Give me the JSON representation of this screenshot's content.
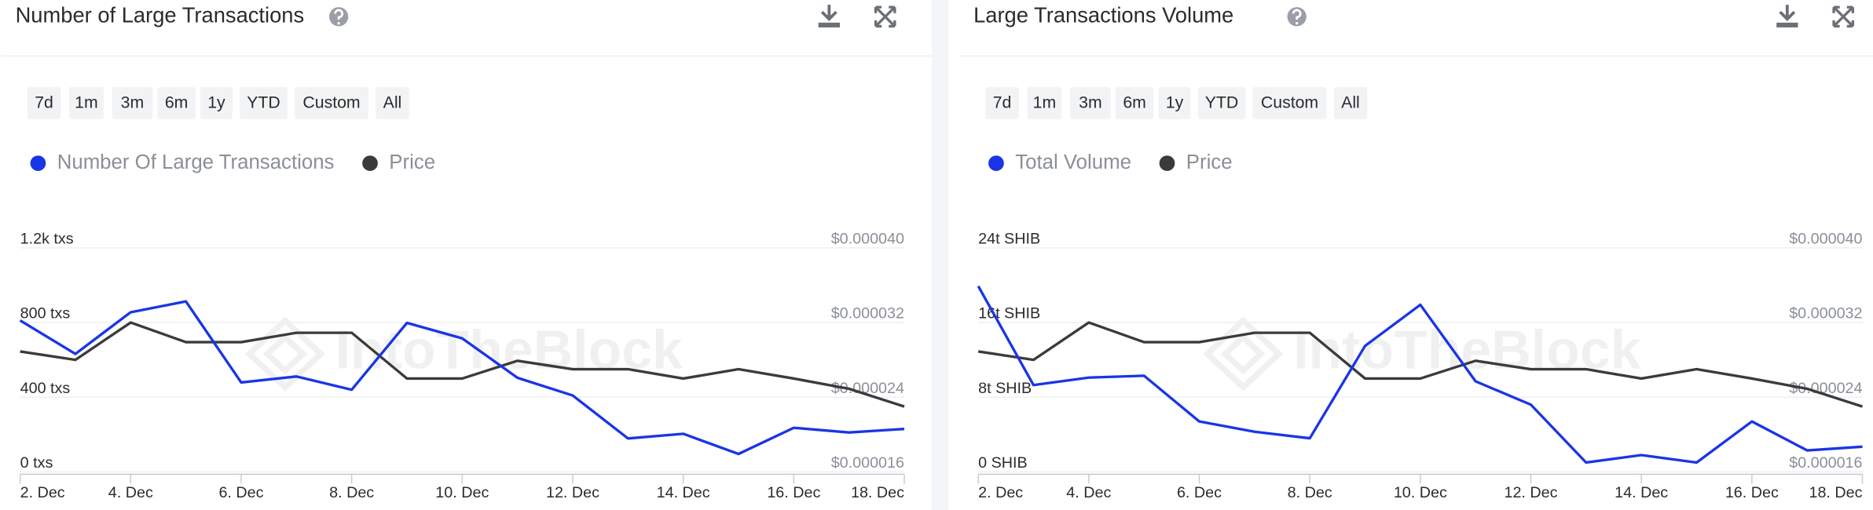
{
  "chart_data": [
    {
      "type": "line",
      "title": "Number of Large Transactions",
      "range_buttons": [
        "7d",
        "1m",
        "3m",
        "6m",
        "1y",
        "YTD",
        "Custom",
        "All"
      ],
      "watermark": "IntoTheBlock",
      "categories": [
        "2. Dec",
        null,
        "4. Dec",
        null,
        "6. Dec",
        null,
        "8. Dec",
        null,
        "10. Dec",
        null,
        "12. Dec",
        null,
        "14. Dec",
        null,
        "16. Dec",
        null,
        "18. Dec"
      ],
      "series": [
        {
          "name": "Number Of Large Transactions",
          "color": "#1a35e6",
          "axis": "y",
          "values": [
            811,
            632,
            855,
            913,
            479,
            511,
            440,
            798,
            715,
            504,
            409,
            179,
            204,
            96,
            236,
            211,
            230
          ]
        },
        {
          "name": "Price",
          "color": "#3b3b3b",
          "axis": "y2",
          "values": [
            2.89e-05,
            2.8e-05,
            3.2e-05,
            2.99e-05,
            2.99e-05,
            3.09e-05,
            3.09e-05,
            2.6e-05,
            2.6e-05,
            2.79e-05,
            2.7e-05,
            2.7e-05,
            2.6e-05,
            2.7e-05,
            2.6e-05,
            2.49e-05,
            2.3e-05
          ]
        }
      ],
      "ylim": [
        0,
        1200
      ],
      "yticks": [
        {
          "value": 0,
          "label": "0 txs"
        },
        {
          "value": 400,
          "label": "400 txs"
        },
        {
          "value": 800,
          "label": "800 txs"
        },
        {
          "value": 1200,
          "label": "1.2k txs"
        }
      ],
      "y2lim": [
        1.6e-05,
        4e-05
      ],
      "y2ticks": [
        {
          "value": 1.6e-05,
          "label": "$0.000016"
        },
        {
          "value": 2.4e-05,
          "label": "$0.000024"
        },
        {
          "value": 3.2e-05,
          "label": "$0.000032"
        },
        {
          "value": 4e-05,
          "label": "$0.000040"
        }
      ],
      "grid": true
    },
    {
      "type": "line",
      "title": "Large Transactions Volume",
      "range_buttons": [
        "7d",
        "1m",
        "3m",
        "6m",
        "1y",
        "YTD",
        "Custom",
        "All"
      ],
      "watermark": "IntoTheBlock",
      "categories": [
        "2. Dec",
        null,
        "4. Dec",
        null,
        "6. Dec",
        null,
        "8. Dec",
        null,
        "10. Dec",
        null,
        "12. Dec",
        null,
        "14. Dec",
        null,
        "16. Dec",
        null,
        "18. Dec"
      ],
      "series": [
        {
          "name": "Total Volume",
          "color": "#1a35e6",
          "axis": "y",
          "values": [
            19900000000000.0,
            9300000000000.0,
            10100000000000.0,
            10300000000000.0,
            5400000000000.0,
            4300000000000.0,
            3600000000000.0,
            13500000000000.0,
            17900000000000.0,
            9700000000000.0,
            7200000000000.0,
            1000000000000.0,
            1800000000000.0,
            1000000000000.0,
            5400000000000.0,
            2300000000000.0,
            2700000000000.0
          ]
        },
        {
          "name": "Price",
          "color": "#3b3b3b",
          "axis": "y2",
          "values": [
            2.89e-05,
            2.8e-05,
            3.2e-05,
            2.99e-05,
            2.99e-05,
            3.09e-05,
            3.09e-05,
            2.6e-05,
            2.6e-05,
            2.79e-05,
            2.7e-05,
            2.7e-05,
            2.6e-05,
            2.7e-05,
            2.6e-05,
            2.49e-05,
            2.3e-05
          ]
        }
      ],
      "ylim": [
        0,
        24000000000000.0
      ],
      "yticks": [
        {
          "value": 0,
          "label": "0 SHIB"
        },
        {
          "value": 8000000000000.0,
          "label": "8t SHIB"
        },
        {
          "value": 16000000000000.0,
          "label": "16t SHIB"
        },
        {
          "value": 24000000000000.0,
          "label": "24t SHIB"
        }
      ],
      "y2lim": [
        1.6e-05,
        4e-05
      ],
      "y2ticks": [
        {
          "value": 1.6e-05,
          "label": "$0.000016"
        },
        {
          "value": 2.4e-05,
          "label": "$0.000024"
        },
        {
          "value": 3.2e-05,
          "label": "$0.000032"
        },
        {
          "value": 4e-05,
          "label": "$0.000040"
        }
      ],
      "grid": true
    }
  ]
}
